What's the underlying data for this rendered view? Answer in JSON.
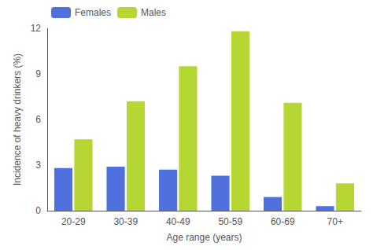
{
  "chart_data": {
    "type": "bar",
    "categories": [
      "20-29",
      "30-39",
      "40-49",
      "50-59",
      "60-69",
      "70+"
    ],
    "series": [
      {
        "name": "Females",
        "values": [
          2.8,
          2.9,
          2.7,
          2.3,
          0.9,
          0.3
        ]
      },
      {
        "name": "Males",
        "values": [
          4.7,
          7.2,
          9.5,
          11.8,
          7.1,
          1.8
        ]
      }
    ],
    "xlabel": "Age range (years)",
    "ylabel": "Incidence of heavy drinkers (%)",
    "ylim": [
      0,
      12
    ],
    "yticks": [
      0,
      3,
      6,
      9,
      12
    ],
    "grid": false,
    "legend": "upper left"
  }
}
